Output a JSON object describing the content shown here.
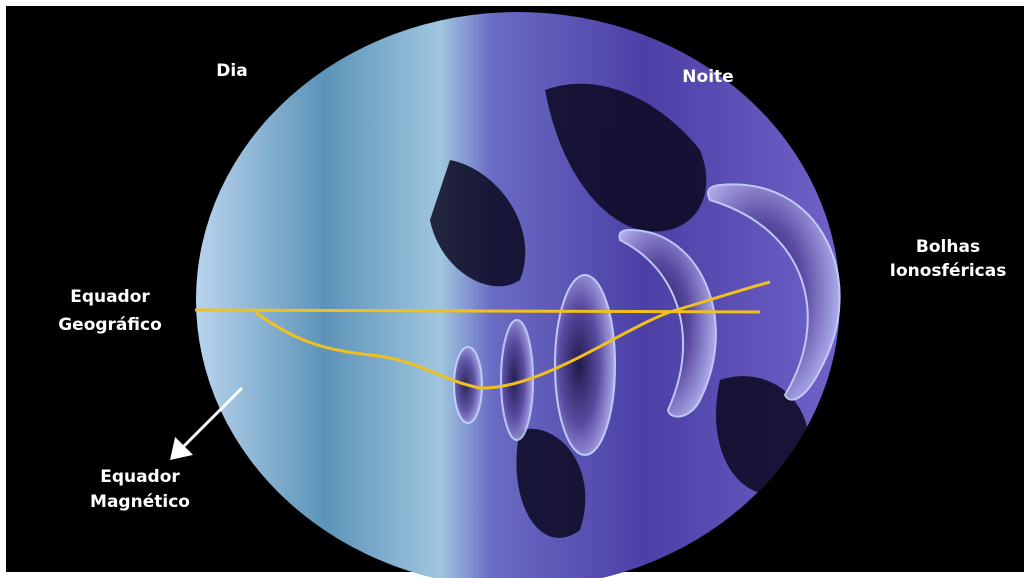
{
  "labels": {
    "day": "Dia",
    "night": "Noite",
    "geographic_equator": [
      "Equador",
      "Geográfico"
    ],
    "ionospheric_bubbles": [
      "Bolhas",
      "Ionosféricas"
    ],
    "magnetic_equator": [
      "Equador",
      "Magnético"
    ]
  }
}
